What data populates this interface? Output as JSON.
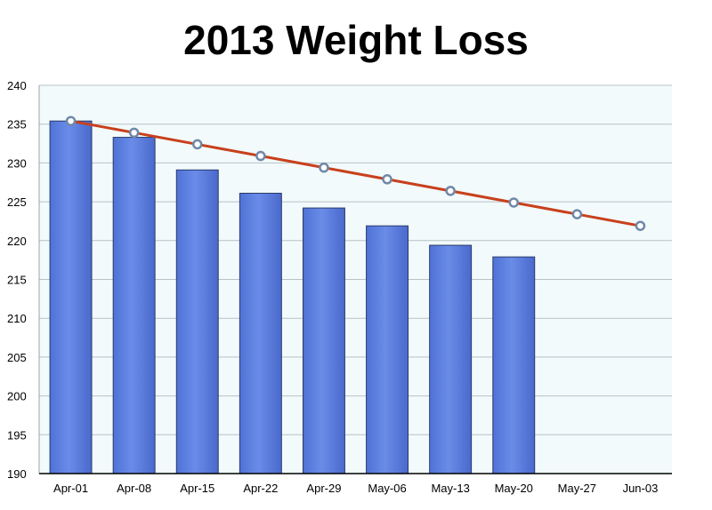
{
  "chart_data": {
    "type": "bar",
    "title": "2013 Weight Loss",
    "categories": [
      "Apr-01",
      "Apr-08",
      "Apr-15",
      "Apr-22",
      "Apr-29",
      "May-06",
      "May-13",
      "May-20",
      "May-27",
      "Jun-03"
    ],
    "series": [
      {
        "type": "bar",
        "values": [
          235.4,
          233.3,
          229.1,
          226.1,
          224.2,
          221.9,
          219.4,
          217.9,
          null,
          null
        ]
      },
      {
        "type": "line",
        "values": [
          235.4,
          233.9,
          232.4,
          230.9,
          229.4,
          227.9,
          226.4,
          224.9,
          223.4,
          221.9
        ]
      }
    ],
    "ylim": [
      190,
      240
    ],
    "yticks": [
      190,
      195,
      200,
      205,
      210,
      215,
      220,
      225,
      230,
      235,
      240
    ],
    "grid": true,
    "colors": {
      "bar_fill": "#5b7fe0",
      "bar_stroke": "#2a3a6a",
      "line": "#c8401c",
      "marker_fill": "#ffffff",
      "marker_stroke": "#6f88aa",
      "plot_bg": "#f2fafb",
      "grid": "#b8c2c6"
    }
  }
}
